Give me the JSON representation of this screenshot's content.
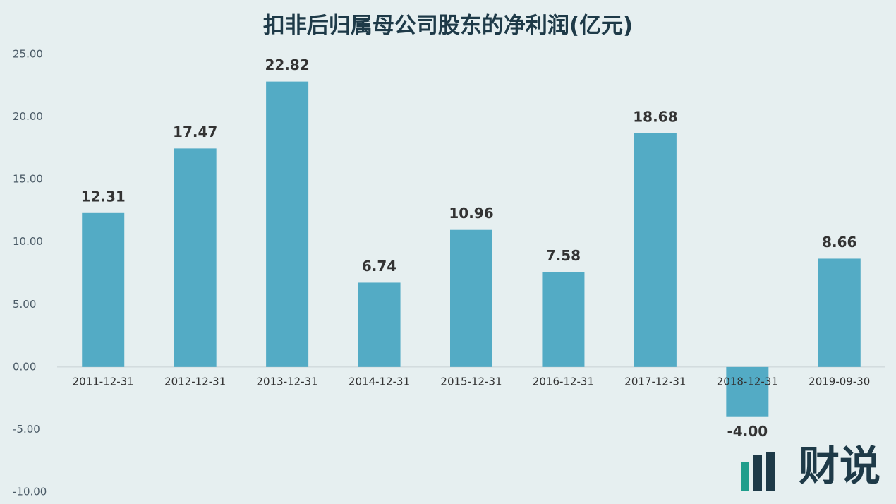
{
  "chart_data": {
    "type": "bar",
    "title": "扣非后归属母公司股东的净利润(亿元)",
    "categories": [
      "2011-12-31",
      "2012-12-31",
      "2013-12-31",
      "2014-12-31",
      "2015-12-31",
      "2016-12-31",
      "2017-12-31",
      "2018-12-31",
      "2019-09-30"
    ],
    "values": [
      12.31,
      17.47,
      22.82,
      6.74,
      10.96,
      7.58,
      18.68,
      -4,
      8.66
    ],
    "value_labels": [
      "12.31",
      "17.47",
      "22.82",
      "6.74",
      "10.96",
      "7.58",
      "18.68",
      "-4.00",
      "8.66"
    ],
    "color": "#53abc5",
    "ylim": [
      -10,
      25
    ],
    "yticks": [
      {
        "value": -10,
        "label": "-10.00"
      },
      {
        "value": -5,
        "label": "-5.00"
      },
      {
        "value": 0,
        "label": "0.00"
      },
      {
        "value": 5,
        "label": "5.00"
      },
      {
        "value": 10,
        "label": "10.00"
      },
      {
        "value": 15,
        "label": "15.00"
      },
      {
        "value": 20,
        "label": "20.00"
      },
      {
        "value": 25,
        "label": "25.00"
      }
    ],
    "brand": "财说"
  }
}
